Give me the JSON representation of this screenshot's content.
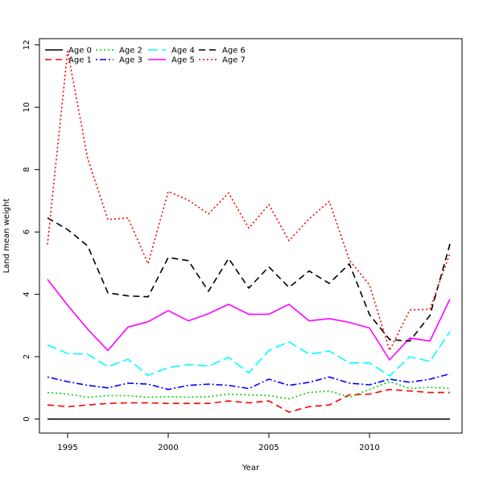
{
  "chart_data": {
    "type": "line",
    "title": "",
    "xlabel": "Year",
    "ylabel": "Land mean weight",
    "xlim": [
      1993.6,
      2014.6
    ],
    "ylim": [
      -0.45,
      12.2
    ],
    "xticks": [
      1995,
      2000,
      2005,
      2010
    ],
    "yticks": [
      0,
      2,
      4,
      6,
      8,
      10,
      12
    ],
    "legend_position": "top-left",
    "x": [
      1994,
      1995,
      1996,
      1997,
      1998,
      1999,
      2000,
      2001,
      2002,
      2003,
      2004,
      2005,
      2006,
      2007,
      2008,
      2009,
      2010,
      2011,
      2012,
      2013,
      2014
    ],
    "series": [
      {
        "name": "Age 0",
        "color": "#000000",
        "dash": "solid",
        "values": [
          0,
          0,
          0,
          0,
          0,
          0,
          0,
          0,
          0,
          0,
          0,
          0,
          0,
          0,
          0,
          0,
          0,
          0,
          0,
          0,
          0
        ]
      },
      {
        "name": "Age 1",
        "color": "#ff0000",
        "dash": "dashed",
        "values": [
          0.45,
          0.4,
          0.45,
          0.5,
          0.52,
          0.52,
          0.5,
          0.5,
          0.5,
          0.58,
          0.52,
          0.58,
          0.22,
          0.4,
          0.45,
          0.78,
          0.8,
          0.95,
          0.9,
          0.85,
          0.85
        ]
      },
      {
        "name": "Age 2",
        "color": "#00cd00",
        "dash": "dotted",
        "values": [
          0.85,
          0.8,
          0.7,
          0.75,
          0.75,
          0.7,
          0.72,
          0.7,
          0.72,
          0.8,
          0.78,
          0.75,
          0.65,
          0.85,
          0.9,
          0.7,
          0.95,
          1.2,
          0.98,
          1.02,
          0.98
        ]
      },
      {
        "name": "Age 3",
        "color": "#0000ff",
        "dash": "dotdash",
        "values": [
          1.35,
          1.2,
          1.08,
          1.0,
          1.15,
          1.12,
          0.95,
          1.08,
          1.12,
          1.08,
          0.98,
          1.28,
          1.08,
          1.18,
          1.35,
          1.15,
          1.1,
          1.28,
          1.18,
          1.28,
          1.45
        ]
      },
      {
        "name": "Age 4",
        "color": "#00ffff",
        "dash": "longdash",
        "values": [
          2.38,
          2.1,
          2.08,
          1.68,
          1.92,
          1.4,
          1.65,
          1.75,
          1.7,
          1.98,
          1.48,
          2.2,
          2.48,
          2.08,
          2.18,
          1.8,
          1.8,
          1.38,
          2.0,
          1.85,
          2.8
        ]
      },
      {
        "name": "Age 5",
        "color": "#ff00ff",
        "dash": "solid",
        "values": [
          4.48,
          3.65,
          2.88,
          2.2,
          2.95,
          3.12,
          3.48,
          3.15,
          3.38,
          3.68,
          3.36,
          3.36,
          3.68,
          3.15,
          3.22,
          3.1,
          2.92,
          1.9,
          2.6,
          2.5,
          3.85
        ]
      },
      {
        "name": "Age 6",
        "color": "#000000",
        "dash": "dashed",
        "values": [
          6.45,
          6.08,
          5.55,
          4.05,
          3.95,
          3.92,
          5.18,
          5.08,
          4.1,
          5.15,
          4.2,
          4.88,
          4.22,
          4.75,
          4.35,
          4.98,
          3.35,
          2.55,
          2.5,
          3.32,
          5.62
        ]
      },
      {
        "name": "Age 7",
        "color": "#ff0000",
        "dash": "dotted",
        "values": [
          5.6,
          11.8,
          8.35,
          6.4,
          6.45,
          4.98,
          7.3,
          7.02,
          6.58,
          7.25,
          6.12,
          6.88,
          5.72,
          6.42,
          6.98,
          5.1,
          4.3,
          2.2,
          3.5,
          3.52,
          5.32
        ]
      }
    ]
  }
}
